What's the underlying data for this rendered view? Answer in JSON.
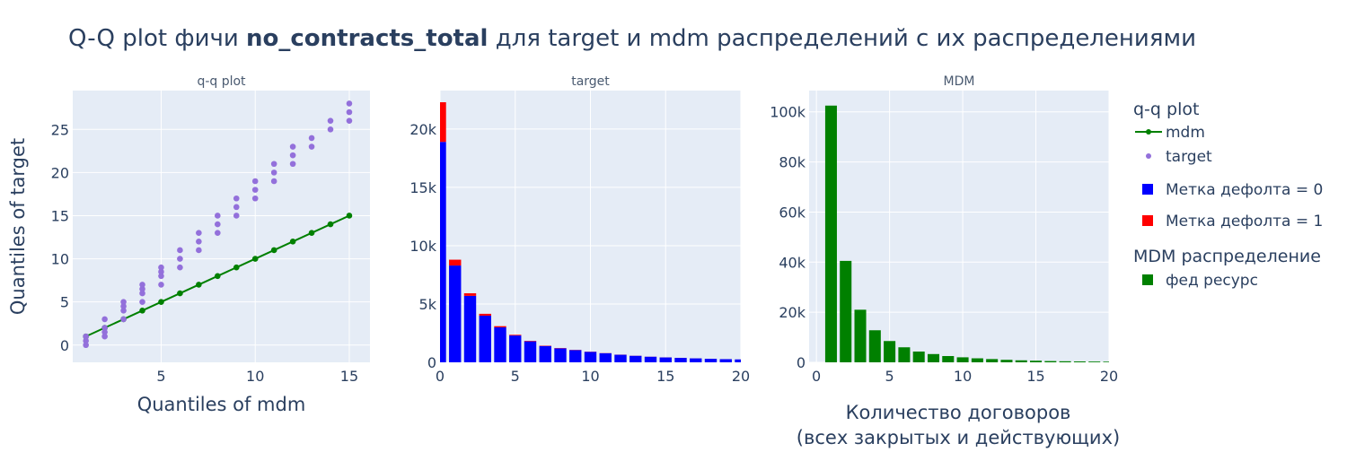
{
  "figure": {
    "title_prefix": "Q-Q plot фичи ",
    "title_bold": "no_contracts_total",
    "title_suffix": " для target и mdm  распределений с их распределениями"
  },
  "colors": {
    "plot_bg": "#e5ecf6",
    "grid": "#ffffff",
    "mdm_line": "#008000",
    "target_points": "#9370db",
    "label0": "#0000ff",
    "label1": "#ff0000",
    "fed": "#008000"
  },
  "legend": {
    "group1_title": "q-q plot",
    "mdm": "mdm",
    "target": "target",
    "label0": "Метка дефолта = 0",
    "label1": "Метка дефолта = 1",
    "group2_title": "MDM распределение",
    "fed": "фед ресурс"
  },
  "chart_data": [
    {
      "type": "scatter",
      "title": "q-q plot",
      "xlabel": "Quantiles of mdm",
      "ylabel": "Quantiles of target",
      "xlim": [
        0.3,
        16.1
      ],
      "ylim": [
        -2,
        29.5
      ],
      "xticks": [
        5,
        10,
        15
      ],
      "yticks": [
        0,
        5,
        10,
        15,
        20,
        25
      ],
      "series": [
        {
          "name": "mdm",
          "mode": "lines+markers",
          "x": [
            1,
            2,
            3,
            4,
            5,
            6,
            7,
            8,
            9,
            10,
            11,
            12,
            13,
            14,
            15
          ],
          "y": [
            1,
            2,
            3,
            4,
            5,
            6,
            7,
            8,
            9,
            10,
            11,
            12,
            13,
            14,
            15
          ]
        },
        {
          "name": "target",
          "mode": "markers",
          "x": [
            1,
            1,
            1,
            2,
            2,
            2,
            2,
            3,
            3,
            3,
            3,
            4,
            4,
            4,
            4,
            5,
            5,
            5,
            5,
            6,
            6,
            6,
            7,
            7,
            7,
            8,
            8,
            8,
            9,
            9,
            9,
            10,
            10,
            10,
            11,
            11,
            11,
            12,
            12,
            12,
            13,
            13,
            14,
            14,
            15,
            15,
            15
          ],
          "y": [
            0,
            0.5,
            1,
            1,
            1.5,
            2,
            3,
            3,
            4,
            4.5,
            5,
            5,
            6,
            6.5,
            7,
            7,
            8,
            8.5,
            9,
            9,
            10,
            11,
            11,
            12,
            13,
            13,
            14,
            15,
            15,
            16,
            17,
            17,
            18,
            19,
            19,
            20,
            21,
            21,
            22,
            23,
            23,
            24,
            25,
            26,
            26,
            27,
            28
          ]
        }
      ]
    },
    {
      "type": "bar",
      "title": "target",
      "barmode": "stack",
      "xlim": [
        0,
        20
      ],
      "ylim": [
        0,
        23300
      ],
      "xticks": [
        0,
        5,
        10,
        15,
        20
      ],
      "yticks": [
        0,
        5000,
        10000,
        15000,
        20000
      ],
      "ytick_labels": [
        "0",
        "5k",
        "10k",
        "15k",
        "20k"
      ],
      "categories": [
        0,
        1,
        2,
        3,
        4,
        5,
        6,
        7,
        8,
        9,
        10,
        11,
        12,
        13,
        14,
        15,
        16,
        17,
        18,
        19,
        20
      ],
      "series": [
        {
          "name": "Метка дефолта = 0",
          "values": [
            18900,
            8300,
            5700,
            4000,
            3000,
            2300,
            1800,
            1400,
            1200,
            1050,
            900,
            780,
            650,
            560,
            480,
            420,
            380,
            340,
            300,
            270,
            250
          ]
        },
        {
          "name": "Метка дефолта = 1",
          "values": [
            3400,
            500,
            220,
            160,
            100,
            60,
            40,
            30,
            25,
            20,
            15,
            12,
            10,
            8,
            6,
            5,
            4,
            3,
            3,
            2,
            2
          ]
        }
      ]
    },
    {
      "type": "bar",
      "title": "MDM",
      "xlabel": "Количество договоров\n(всех закрытых и действующих)",
      "xlim": [
        -0.5,
        20
      ],
      "ylim": [
        0,
        108500
      ],
      "xticks": [
        0,
        5,
        10,
        15,
        20
      ],
      "yticks": [
        0,
        20000,
        40000,
        60000,
        80000,
        100000
      ],
      "ytick_labels": [
        "0",
        "20k",
        "40k",
        "60k",
        "80k",
        "100k"
      ],
      "categories": [
        1,
        2,
        3,
        4,
        5,
        6,
        7,
        8,
        9,
        10,
        11,
        12,
        13,
        14,
        15,
        16,
        17,
        18,
        19,
        20
      ],
      "series": [
        {
          "name": "фед ресурс",
          "values": [
            102500,
            40500,
            21000,
            12800,
            8500,
            6000,
            4300,
            3300,
            2500,
            2000,
            1600,
            1300,
            1000,
            800,
            650,
            500,
            420,
            350,
            300,
            250
          ]
        }
      ]
    }
  ]
}
